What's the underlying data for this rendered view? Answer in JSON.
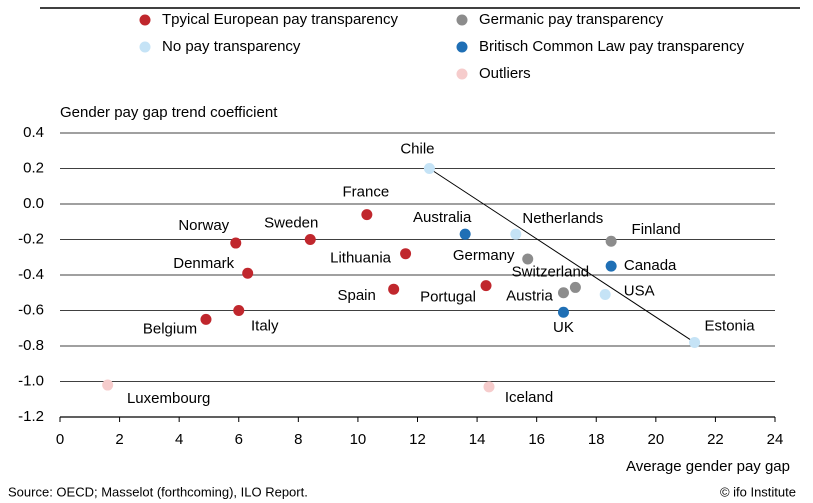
{
  "chart_data": {
    "type": "scatter",
    "y_label": "Gender pay gap trend coefficient",
    "x_label": "Average gender pay gap",
    "source": "Source: OECD; Masselot (forthcoming), ILO Report.",
    "credit": "© ifo Institute",
    "xlim": [
      0,
      24
    ],
    "xticks": [
      0,
      2,
      4,
      6,
      8,
      10,
      12,
      14,
      16,
      18,
      20,
      22,
      24
    ],
    "ylim": [
      -1.2,
      0.4
    ],
    "yticks": [
      0.4,
      0.2,
      {
        "value": 0,
        "label": "0.0"
      },
      -0.2,
      -0.4,
      -0.6,
      -0.8,
      {
        "value": -1,
        "label": "-1.0"
      },
      -1.2
    ],
    "grid": true,
    "series": [
      {
        "name": "Tpyical European pay transparency",
        "color": "#c0272d",
        "labels": [
          "France",
          "Norway",
          "Sweden",
          "Denmark",
          "Lithuania",
          "Spain",
          "Portugal",
          "Belgium",
          "Italy"
        ],
        "x": [
          10.3,
          5.9,
          8.4,
          6.3,
          11.6,
          11.2,
          14.3,
          4.9,
          6.0
        ],
        "values": [
          -0.06,
          -0.22,
          -0.2,
          -0.39,
          -0.28,
          -0.48,
          -0.46,
          -0.65,
          -0.6
        ]
      },
      {
        "name": "Germanic pay transparency",
        "color": "#8c8c8c",
        "labels": [
          "Germany",
          "Finland",
          "Switzerland",
          "Austria"
        ],
        "x": [
          15.7,
          18.5,
          17.3,
          16.9
        ],
        "values": [
          -0.31,
          -0.21,
          -0.47,
          -0.5
        ]
      },
      {
        "name": "No pay transparency",
        "color": "#c5e3f6",
        "labels": [
          "Chile",
          "Netherlands",
          "USA",
          "Estonia"
        ],
        "x": [
          12.4,
          15.3,
          18.3,
          21.3
        ],
        "values": [
          0.2,
          -0.17,
          -0.51,
          -0.78
        ]
      },
      {
        "name": "Britisch Common Law pay transparency",
        "color": "#1f6fb5",
        "labels": [
          "Australia",
          "Canada",
          "UK"
        ],
        "x": [
          13.6,
          18.5,
          16.9
        ],
        "values": [
          -0.17,
          -0.35,
          -0.61
        ]
      },
      {
        "name": "Outliers",
        "color": "#f6cccc",
        "labels": [
          "Luxembourg",
          "Iceland"
        ],
        "x": [
          1.6,
          14.4
        ],
        "values": [
          -1.02,
          -1.03
        ]
      }
    ]
  }
}
